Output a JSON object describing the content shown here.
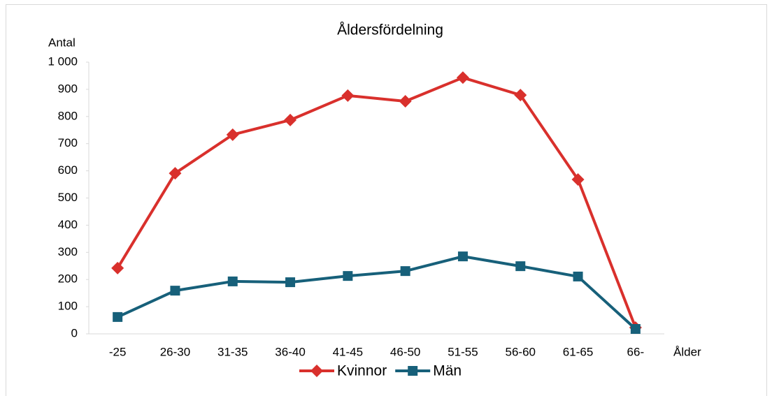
{
  "chart_data": {
    "type": "line",
    "title": "Åldersfördelning",
    "y_label": "Antal",
    "x_label": "Ålder",
    "categories": [
      "-25",
      "26-30",
      "31-35",
      "36-40",
      "41-45",
      "46-50",
      "51-55",
      "56-60",
      "61-65",
      "66-"
    ],
    "series": [
      {
        "name": "Kvinnor",
        "color": "#d9302c",
        "marker": "diamond",
        "values": [
          242,
          591,
          733,
          787,
          877,
          856,
          943,
          879,
          568,
          23
        ]
      },
      {
        "name": "Män",
        "color": "#17607a",
        "marker": "square",
        "values": [
          62,
          159,
          193,
          190,
          213,
          231,
          285,
          249,
          211,
          18
        ]
      }
    ],
    "ylim": [
      0,
      1000
    ],
    "yticks": [
      0,
      100,
      200,
      300,
      400,
      500,
      600,
      700,
      800,
      900,
      {
        "value": 1000,
        "label": "1 000"
      }
    ],
    "legend": "bottom"
  }
}
